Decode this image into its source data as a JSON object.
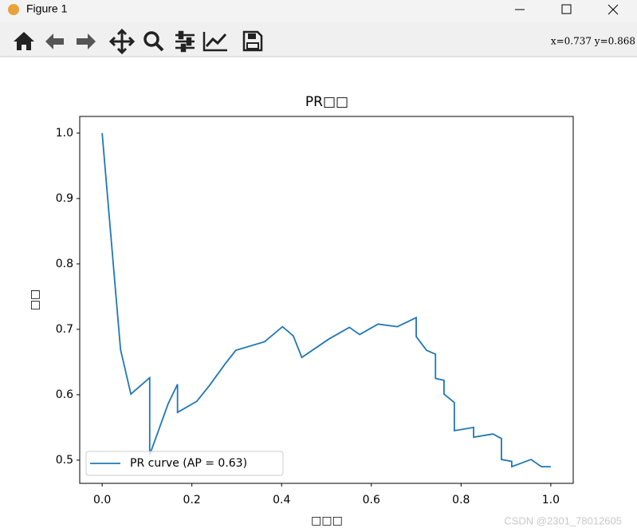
{
  "window": {
    "title": "Figure 1",
    "coords": "x=0.737  y=0.868",
    "watermark": "CSDN @2301_78012605"
  },
  "chart_data": {
    "type": "line",
    "title": "PR□□",
    "xlabel": "□□□",
    "ylabel": "□□",
    "x": [
      0,
      0.041,
      0.064,
      0.106,
      0.106,
      0.147,
      0.168,
      0.168,
      0.211,
      0.239,
      0.275,
      0.298,
      0.362,
      0.402,
      0.426,
      0.445,
      0.505,
      0.551,
      0.574,
      0.615,
      0.658,
      0.7,
      0.7,
      0.723,
      0.743,
      0.743,
      0.762,
      0.762,
      0.785,
      0.785,
      0.828,
      0.828,
      0.871,
      0.89,
      0.89,
      0.913,
      0.913,
      0.956,
      0.979,
      1.0
    ],
    "series": [
      {
        "name": "PR curve (AP = 0.63)",
        "color": "#1f77b4",
        "values": [
          1.0,
          0.669,
          0.601,
          0.626,
          0.508,
          0.586,
          0.616,
          0.573,
          0.59,
          0.614,
          0.648,
          0.668,
          0.681,
          0.704,
          0.69,
          0.657,
          0.685,
          0.703,
          0.692,
          0.708,
          0.704,
          0.718,
          0.689,
          0.668,
          0.662,
          0.625,
          0.622,
          0.601,
          0.588,
          0.545,
          0.55,
          0.535,
          0.54,
          0.533,
          0.501,
          0.498,
          0.49,
          0.501,
          0.49,
          0.49
        ]
      }
    ],
    "xlim": [
      -0.05,
      1.05
    ],
    "ylim": [
      0.4645,
      1.0255
    ],
    "xticks": [
      {
        "value": 0,
        "label": "0.0"
      },
      0.2,
      0.4,
      0.6,
      0.8,
      {
        "value": 1,
        "label": "1.0"
      }
    ],
    "yticks": [
      {
        "value": 0.5,
        "label": "0.5"
      },
      0.6,
      0.7,
      0.8,
      0.9,
      {
        "value": 1,
        "label": "1.0"
      }
    ],
    "legend": "lower left"
  }
}
